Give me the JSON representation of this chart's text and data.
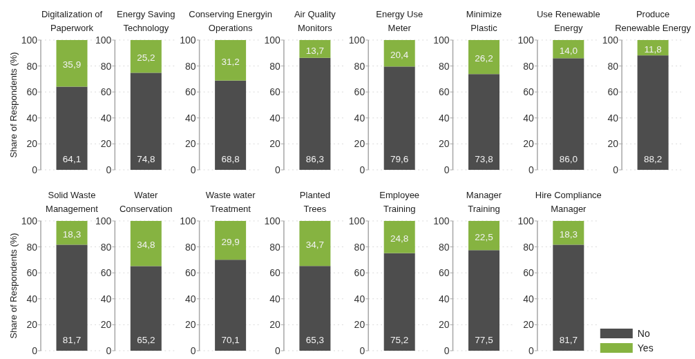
{
  "chart_data": [
    {
      "type": "bar",
      "title": "Digitalization of\nPaperwork",
      "ylabel": "Share of Respondents (%)",
      "categories": [
        null
      ],
      "stacked": true,
      "ylim": [
        0,
        100
      ],
      "yticks": [
        0,
        20,
        40,
        60,
        80,
        100
      ],
      "grid": "y",
      "series": [
        {
          "color": "#4d4d4d",
          "values": [
            64.1
          ],
          "value_labels": [
            "64,1"
          ]
        },
        {
          "color": "#86b341",
          "values": [
            35.9
          ],
          "value_labels": [
            "35,9"
          ]
        }
      ]
    },
    {
      "type": "bar",
      "title": "Energy Saving\nTechnology",
      "categories": [
        null
      ],
      "stacked": true,
      "ylim": [
        0,
        100
      ],
      "yticks": [
        0,
        20,
        40,
        60,
        80,
        100
      ],
      "grid": "y",
      "series": [
        {
          "color": "#4d4d4d",
          "values": [
            74.8
          ],
          "value_labels": [
            "74,8"
          ]
        },
        {
          "color": "#86b341",
          "values": [
            25.2
          ],
          "value_labels": [
            "25,2"
          ]
        }
      ]
    },
    {
      "type": "bar",
      "title": "Conserving Energyin\nOperations",
      "categories": [
        null
      ],
      "stacked": true,
      "ylim": [
        0,
        100
      ],
      "yticks": [
        0,
        20,
        40,
        60,
        80,
        100
      ],
      "grid": "y",
      "series": [
        {
          "color": "#4d4d4d",
          "values": [
            68.8
          ],
          "value_labels": [
            "68,8"
          ]
        },
        {
          "color": "#86b341",
          "values": [
            31.2
          ],
          "value_labels": [
            "31,2"
          ]
        }
      ]
    },
    {
      "type": "bar",
      "title": "Air Quality\nMonitors",
      "categories": [
        null
      ],
      "stacked": true,
      "ylim": [
        0,
        100
      ],
      "yticks": [
        0,
        20,
        40,
        60,
        80,
        100
      ],
      "grid": "y",
      "series": [
        {
          "color": "#4d4d4d",
          "values": [
            86.3
          ],
          "value_labels": [
            "86,3"
          ]
        },
        {
          "color": "#86b341",
          "values": [
            13.7
          ],
          "value_labels": [
            "13,7"
          ]
        }
      ]
    },
    {
      "type": "bar",
      "title": "Energy Use\nMeter",
      "categories": [
        null
      ],
      "stacked": true,
      "ylim": [
        0,
        100
      ],
      "yticks": [
        0,
        20,
        40,
        60,
        80,
        100
      ],
      "grid": "y",
      "series": [
        {
          "color": "#4d4d4d",
          "values": [
            79.6
          ],
          "value_labels": [
            "79,6"
          ]
        },
        {
          "color": "#86b341",
          "values": [
            20.4
          ],
          "value_labels": [
            "20,4"
          ]
        }
      ]
    },
    {
      "type": "bar",
      "title": "Minimize\nPlastic",
      "categories": [
        null
      ],
      "stacked": true,
      "ylim": [
        0,
        100
      ],
      "yticks": [
        0,
        20,
        40,
        60,
        80,
        100
      ],
      "grid": "y",
      "series": [
        {
          "color": "#4d4d4d",
          "values": [
            73.8
          ],
          "value_labels": [
            "73,8"
          ]
        },
        {
          "color": "#86b341",
          "values": [
            26.2
          ],
          "value_labels": [
            "26,2"
          ]
        }
      ]
    },
    {
      "type": "bar",
      "title": "Use Renewable\nEnergy",
      "categories": [
        null
      ],
      "stacked": true,
      "ylim": [
        0,
        100
      ],
      "yticks": [
        0,
        20,
        40,
        60,
        80,
        100
      ],
      "grid": "y",
      "series": [
        {
          "color": "#4d4d4d",
          "values": [
            86.0
          ],
          "value_labels": [
            "86,0"
          ]
        },
        {
          "color": "#86b341",
          "values": [
            14.0
          ],
          "value_labels": [
            "14,0"
          ]
        }
      ]
    },
    {
      "type": "bar",
      "title": "Produce\nRenewable Energy",
      "categories": [
        null
      ],
      "stacked": true,
      "ylim": [
        0,
        100
      ],
      "yticks": [
        0,
        20,
        40,
        60,
        80,
        100
      ],
      "grid": "y",
      "series": [
        {
          "color": "#4d4d4d",
          "values": [
            88.2
          ],
          "value_labels": [
            "88,2"
          ]
        },
        {
          "color": "#86b341",
          "values": [
            11.8
          ],
          "value_labels": [
            "11,8"
          ]
        }
      ]
    },
    {
      "type": "bar",
      "title": "Solid Waste\nManagement",
      "ylabel": "Share of Respondents (%)",
      "categories": [
        null
      ],
      "stacked": true,
      "ylim": [
        0,
        100
      ],
      "yticks": [
        0,
        20,
        40,
        60,
        80,
        100
      ],
      "grid": "y",
      "series": [
        {
          "color": "#4d4d4d",
          "values": [
            81.7
          ],
          "value_labels": [
            "81,7"
          ]
        },
        {
          "color": "#86b341",
          "values": [
            18.3
          ],
          "value_labels": [
            "18,3"
          ]
        }
      ]
    },
    {
      "type": "bar",
      "title": "Water\nConservation",
      "categories": [
        null
      ],
      "stacked": true,
      "ylim": [
        0,
        100
      ],
      "yticks": [
        0,
        20,
        40,
        60,
        80,
        100
      ],
      "grid": "y",
      "series": [
        {
          "color": "#4d4d4d",
          "values": [
            65.2
          ],
          "value_labels": [
            "65,2"
          ]
        },
        {
          "color": "#86b341",
          "values": [
            34.8
          ],
          "value_labels": [
            "34,8"
          ]
        }
      ]
    },
    {
      "type": "bar",
      "title": "Waste water\nTreatment",
      "categories": [
        null
      ],
      "stacked": true,
      "ylim": [
        0,
        100
      ],
      "yticks": [
        0,
        20,
        40,
        60,
        80,
        100
      ],
      "grid": "y",
      "series": [
        {
          "color": "#4d4d4d",
          "values": [
            70.1
          ],
          "value_labels": [
            "70,1"
          ]
        },
        {
          "color": "#86b341",
          "values": [
            29.9
          ],
          "value_labels": [
            "29,9"
          ]
        }
      ]
    },
    {
      "type": "bar",
      "title": "Planted\nTrees",
      "categories": [
        null
      ],
      "stacked": true,
      "ylim": [
        0,
        100
      ],
      "yticks": [
        0,
        20,
        40,
        60,
        80,
        100
      ],
      "grid": "y",
      "series": [
        {
          "color": "#4d4d4d",
          "values": [
            65.3
          ],
          "value_labels": [
            "65,3"
          ]
        },
        {
          "color": "#86b341",
          "values": [
            34.7
          ],
          "value_labels": [
            "34,7"
          ]
        }
      ]
    },
    {
      "type": "bar",
      "title": "Employee\nTraining",
      "categories": [
        null
      ],
      "stacked": true,
      "ylim": [
        0,
        100
      ],
      "yticks": [
        0,
        20,
        40,
        60,
        80,
        100
      ],
      "grid": "y",
      "series": [
        {
          "color": "#4d4d4d",
          "values": [
            75.2
          ],
          "value_labels": [
            "75,2"
          ]
        },
        {
          "color": "#86b341",
          "values": [
            24.8
          ],
          "value_labels": [
            "24,8"
          ]
        }
      ]
    },
    {
      "type": "bar",
      "title": "Manager\nTraining",
      "categories": [
        null
      ],
      "stacked": true,
      "ylim": [
        0,
        100
      ],
      "yticks": [
        0,
        20,
        40,
        60,
        80,
        100
      ],
      "grid": "y",
      "series": [
        {
          "color": "#4d4d4d",
          "values": [
            77.5
          ],
          "value_labels": [
            "77,5"
          ]
        },
        {
          "color": "#86b341",
          "values": [
            22.5
          ],
          "value_labels": [
            "22,5"
          ]
        }
      ]
    },
    {
      "type": "bar",
      "title": "Hire Compliance\nManager",
      "categories": [
        null
      ],
      "stacked": true,
      "ylim": [
        0,
        100
      ],
      "yticks": [
        0,
        20,
        40,
        60,
        80,
        100
      ],
      "grid": "y",
      "legend": "bottom right",
      "series": [
        {
          "name": "No",
          "color": "#4d4d4d",
          "values": [
            81.7
          ],
          "value_labels": [
            "81,7"
          ]
        },
        {
          "name": "Yes",
          "color": "#86b341",
          "values": [
            18.3
          ],
          "value_labels": [
            "18,3"
          ]
        }
      ]
    }
  ]
}
